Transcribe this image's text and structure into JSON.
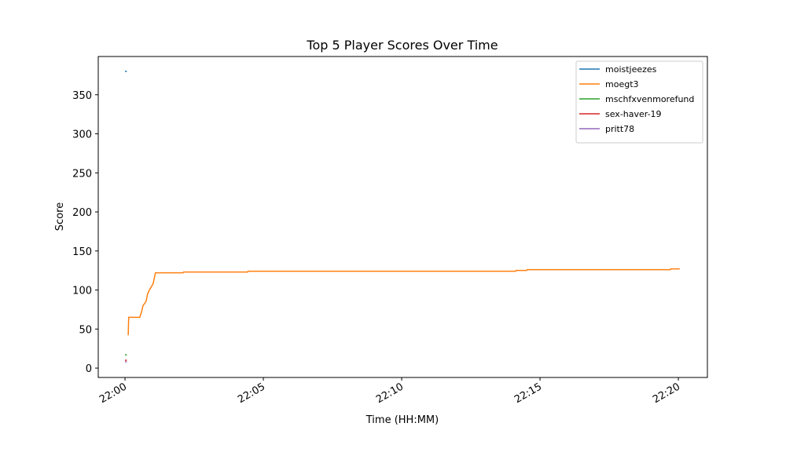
{
  "chart_data": {
    "type": "line",
    "title": "Top 5 Player Scores Over Time",
    "x_label": "Time (HH:MM)",
    "y_label": "Score",
    "xlim": [
      "21:59:02",
      "22:21:03"
    ],
    "xticks": [
      "22:00",
      "22:05",
      "22:10",
      "22:15",
      "22:20"
    ],
    "ylim": [
      -12,
      399
    ],
    "yticks": [
      0,
      50,
      100,
      150,
      200,
      250,
      300,
      350
    ],
    "grid": false,
    "legend": "upper right",
    "series": [
      {
        "name": "moistjeezes",
        "color": "#1f77b4",
        "x": [
          "22:00:00",
          "22:00:04"
        ],
        "values": [
          380,
          380
        ]
      },
      {
        "name": "moegt3",
        "color": "#ff7f0e",
        "x": [
          "22:00:07",
          "22:00:08",
          "22:00:32",
          "22:00:36",
          "22:00:39",
          "22:00:43",
          "22:00:46",
          "22:00:49",
          "22:00:53",
          "22:00:57",
          "22:01:01",
          "22:01:06",
          "22:02:06",
          "22:02:07",
          "22:04:26",
          "22:04:27",
          "22:14:07",
          "22:14:08",
          "22:14:31",
          "22:14:32",
          "22:19:43",
          "22:19:44",
          "22:20:03"
        ],
        "values": [
          42,
          65,
          65,
          72,
          80,
          83,
          86,
          95,
          100,
          104,
          108,
          122,
          122,
          123,
          123,
          124,
          124,
          125,
          125,
          126,
          126,
          127,
          127
        ]
      },
      {
        "name": "mschfxvenmorefund",
        "color": "#2ca02c",
        "x": [
          "22:00:00",
          "22:00:04"
        ],
        "values": [
          17,
          17
        ]
      },
      {
        "name": "sex-haver-19",
        "color": "#d62728",
        "x": [
          "22:00:00",
          "22:00:04"
        ],
        "values": [
          10,
          10
        ]
      },
      {
        "name": "pritt78",
        "color": "#9467bd",
        "x": [
          "22:00:00",
          "22:00:04"
        ],
        "values": [
          8,
          8
        ]
      }
    ]
  }
}
